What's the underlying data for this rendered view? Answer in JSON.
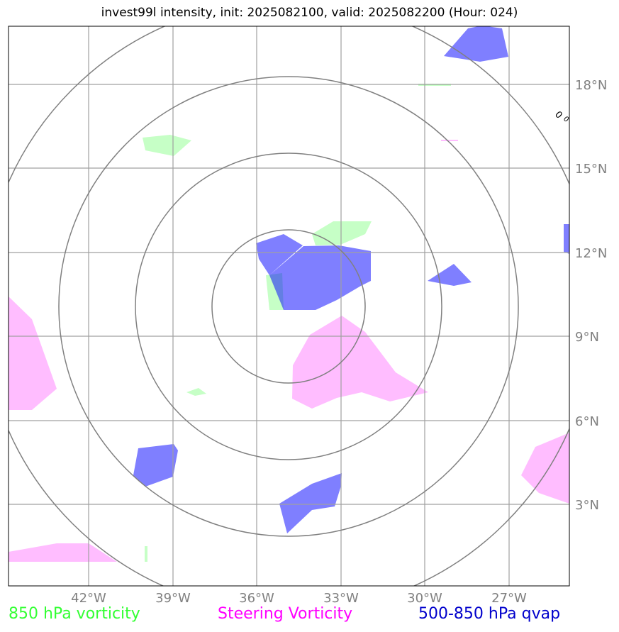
{
  "title": "invest99l intensity, init: 2025082100, valid: 2025082200 (Hour: 024)",
  "colors": {
    "vort850": "#b3ffb3",
    "steering": "#ff99ff",
    "qvap": "#0000ff",
    "grid": "#a0a0a0",
    "rings": "#808080",
    "ticks": "#808080"
  },
  "lat_labels": [
    "18°N",
    "15°N",
    "12°N",
    "9°N",
    "6°N",
    "3°N"
  ],
  "lon_labels": [
    "42°W",
    "39°W",
    "36°W",
    "33°W",
    "30°W",
    "27°W"
  ],
  "annotation": "0",
  "legend": {
    "vort850": "850 hPa vorticity",
    "steering": "Steering Vorticity",
    "qvap": "500-850 hPa qvap"
  }
}
